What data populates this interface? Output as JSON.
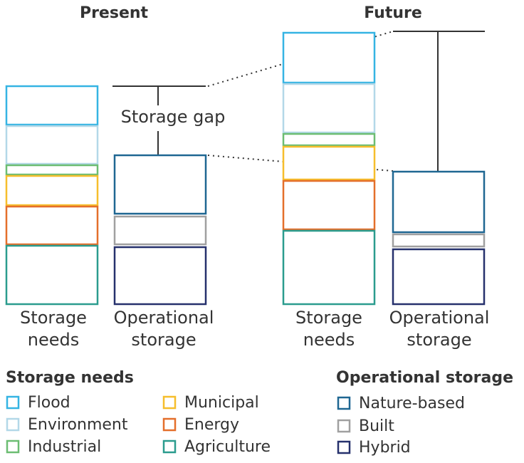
{
  "panels": [
    {
      "title": "Present",
      "needs_label": "Storage needs",
      "operational_label": "Operational storage",
      "annotation": "Storage gap"
    },
    {
      "title": "Future",
      "needs_label": "Storage needs",
      "operational_label": "Operational storage"
    }
  ],
  "legend": {
    "storage_needs": {
      "title": "Storage needs",
      "items": [
        {
          "name": "Flood",
          "color": "#35b4e3"
        },
        {
          "name": "Environment",
          "color": "#b3d8e8"
        },
        {
          "name": "Industrial",
          "color": "#6cbd72"
        },
        {
          "name": "Municipal",
          "color": "#f6be2c"
        },
        {
          "name": "Energy",
          "color": "#e46f2b"
        },
        {
          "name": "Agriculture",
          "color": "#2b9c8e"
        }
      ]
    },
    "operational_storage": {
      "title": "Operational storage",
      "items": [
        {
          "name": "Nature-based",
          "color": "#1f6792"
        },
        {
          "name": "Built",
          "color": "#a0a0a0"
        },
        {
          "name": "Hybrid",
          "color": "#26316d"
        }
      ]
    }
  }
}
